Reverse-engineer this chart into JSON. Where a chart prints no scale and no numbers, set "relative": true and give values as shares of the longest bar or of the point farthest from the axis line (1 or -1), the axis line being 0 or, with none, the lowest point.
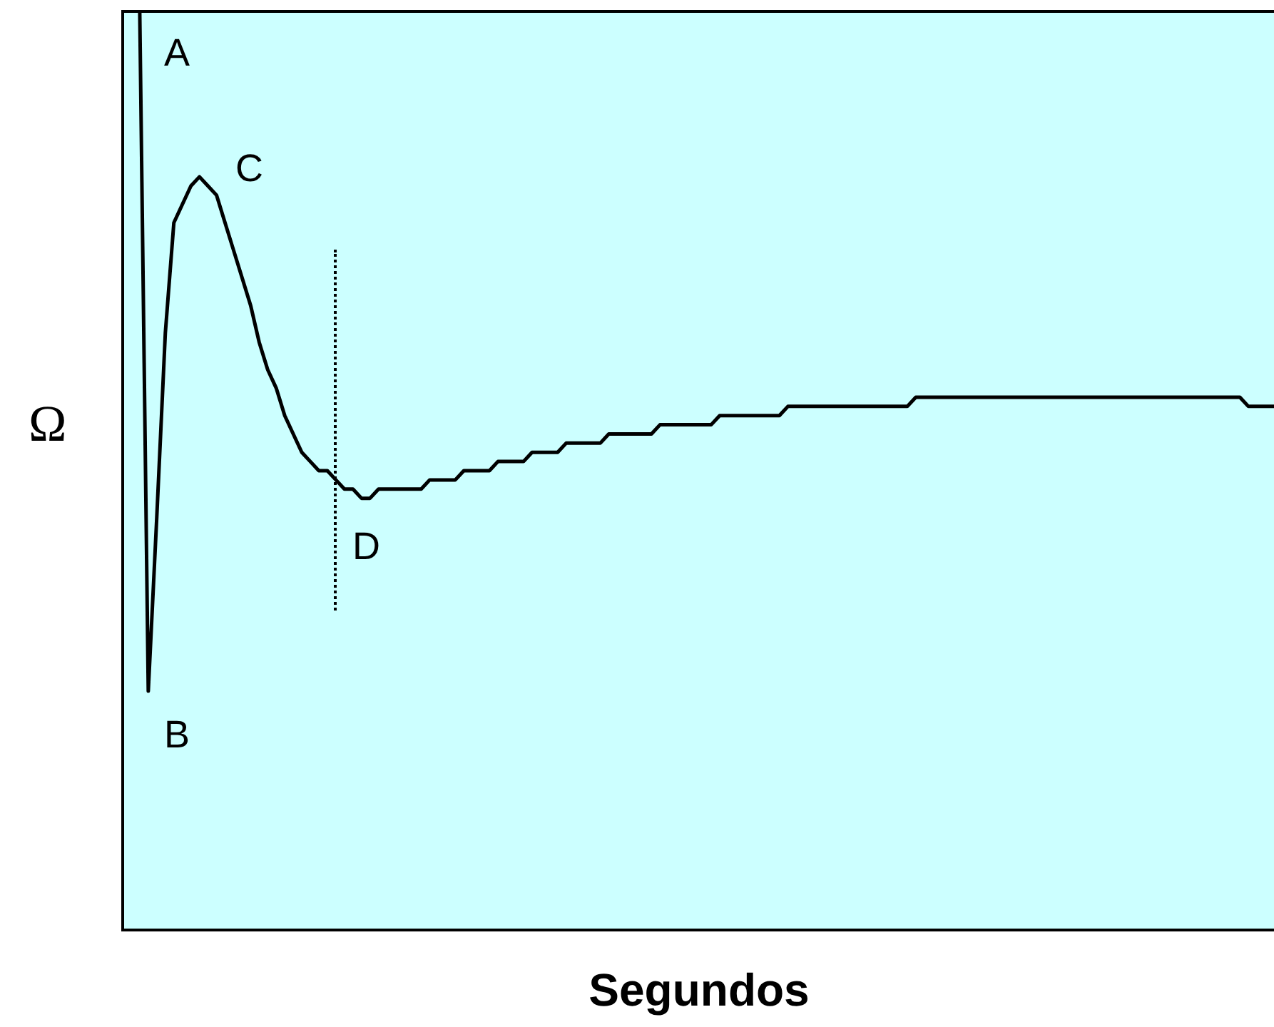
{
  "chart_data": {
    "type": "line",
    "relative": true,
    "xlabel": "Segundos",
    "ylabel": "Ω",
    "annotations": [
      "A",
      "B",
      "C",
      "D"
    ],
    "categories": [
      null,
      null,
      null,
      null,
      null,
      null,
      null,
      null,
      null,
      null,
      null,
      null,
      null,
      null,
      null,
      null,
      null,
      null,
      null,
      null,
      null,
      null,
      null,
      null,
      null,
      null,
      null,
      null,
      null,
      null,
      null,
      null,
      null,
      null,
      null,
      null,
      null,
      null,
      null,
      null,
      null,
      null,
      null,
      null,
      null,
      null,
      null,
      null,
      null,
      null,
      null,
      null,
      null,
      null,
      null,
      null,
      null,
      null,
      null,
      null,
      null,
      null,
      null,
      null,
      null,
      null,
      null,
      null,
      null,
      null,
      null,
      null,
      null,
      null,
      null,
      null,
      null,
      null,
      null,
      null,
      null,
      null,
      null,
      null,
      null,
      null,
      null,
      null,
      null,
      null,
      null,
      null,
      null,
      null,
      null,
      null,
      null,
      null,
      null,
      null,
      null,
      null,
      null,
      null,
      null,
      null,
      null,
      null,
      null,
      null,
      null,
      null,
      null,
      null,
      null,
      null,
      null,
      null,
      null,
      null,
      null,
      null,
      null,
      null,
      null,
      null,
      null,
      null,
      null,
      null,
      null,
      null,
      null,
      null,
      null,
      null
    ],
    "series": [
      {
        "color": "#000000",
        "values": [
          null,
          null,
          1,
          0.26,
          0.45,
          0.65,
          0.77,
          0.79,
          0.81,
          0.82,
          0.81,
          0.8,
          0.77,
          0.74,
          0.71,
          0.68,
          0.64,
          0.61,
          0.59,
          0.56,
          0.54,
          0.52,
          0.51,
          0.5,
          0.5,
          0.49,
          0.48,
          0.48,
          0.47,
          0.47,
          0.48,
          0.48,
          0.48,
          0.48,
          0.48,
          0.48,
          0.49,
          0.49,
          0.49,
          0.49,
          0.5,
          0.5,
          0.5,
          0.5,
          0.51,
          0.51,
          0.51,
          0.51,
          0.52,
          0.52,
          0.52,
          0.52,
          0.53,
          0.53,
          0.53,
          0.53,
          0.53,
          0.54,
          0.54,
          0.54,
          0.54,
          0.54,
          0.54,
          0.55,
          0.55,
          0.55,
          0.55,
          0.55,
          0.55,
          0.55,
          0.56,
          0.56,
          0.56,
          0.56,
          0.56,
          0.56,
          0.56,
          0.56,
          0.57,
          0.57,
          0.57,
          0.57,
          0.57,
          0.57,
          0.57,
          0.57,
          0.57,
          0.57,
          0.57,
          0.57,
          0.57,
          0.57,
          0.57,
          0.58,
          0.58,
          0.58,
          0.58,
          0.58,
          0.58,
          0.58,
          0.58,
          0.58,
          0.58,
          0.58,
          0.58,
          0.58,
          0.58,
          0.58,
          0.58,
          0.58,
          0.58,
          0.58,
          0.58,
          0.58,
          0.58,
          0.58,
          0.58,
          0.58,
          0.58,
          0.58,
          0.58,
          0.58,
          0.58,
          0.58,
          0.58,
          0.58,
          0.58,
          0.58,
          0.58,
          0.58,
          0.58,
          0.58,
          0.57,
          0.57,
          0.57,
          0.57
        ]
      }
    ]
  }
}
